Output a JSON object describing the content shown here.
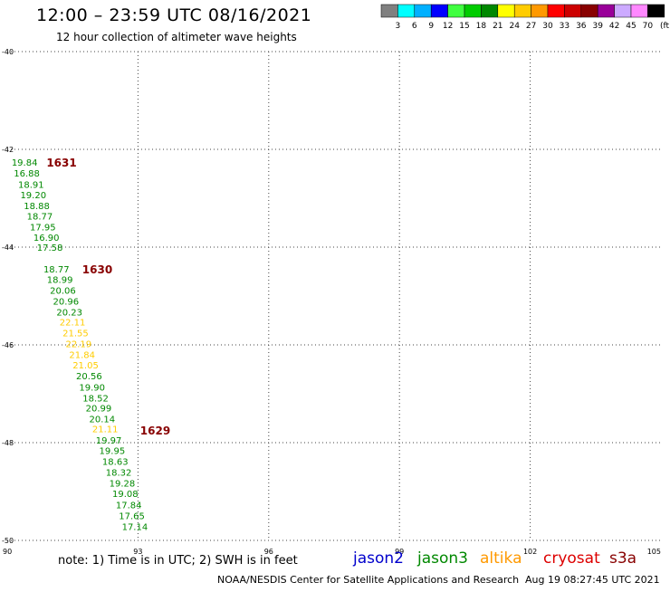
{
  "header": {
    "title": "12:00 – 23:59 UTC 08/16/2021",
    "subtitle": "12 hour collection of altimeter wave heights"
  },
  "legend": {
    "swatch_colors": [
      "#808080",
      "#00ffff",
      "#00b0ff",
      "#0000ff",
      "#40ff40",
      "#00cc00",
      "#008800",
      "#ffff00",
      "#ffcc00",
      "#ff9900",
      "#ff0000",
      "#cc0000",
      "#880000",
      "#990099",
      "#ccaaff",
      "#ff88ff",
      "#000000"
    ],
    "labels": [
      "3",
      "6",
      "9",
      "12",
      "15",
      "18",
      "21",
      "24",
      "27",
      "30",
      "33",
      "36",
      "39",
      "42",
      "45",
      "70",
      "(ft)"
    ]
  },
  "footer": {
    "note": "note: 1) Time is in UTC; 2) SWH is in feet",
    "satellites": [
      {
        "name": "jason2",
        "color": "#0000cc"
      },
      {
        "name": "jason3",
        "color": "#008800"
      },
      {
        "name": "altika",
        "color": "#ff9900"
      },
      {
        "name": "cryosat",
        "color": "#dd0000"
      },
      {
        "name": "s3a",
        "color": "#880000"
      }
    ],
    "credit": "NOAA/NESDIS Center for Satellite Applications and Research",
    "timestamp": "Aug 19 08:27:45 UTC 2021"
  },
  "chart_data": {
    "type": "scatter",
    "xlim": [
      90,
      105
    ],
    "ylim": [
      -50,
      -40
    ],
    "x_ticks": [
      90,
      93,
      96,
      99,
      102,
      105
    ],
    "y_ticks": [
      -40,
      -42,
      -44,
      -46,
      -48,
      -50
    ],
    "grid": true,
    "points": [
      {
        "x": 90.1,
        "y": -42.26,
        "v": "19.84",
        "color": "#008800"
      },
      {
        "x": 90.15,
        "y": -42.48,
        "v": "16.88",
        "color": "#008800"
      },
      {
        "x": 90.25,
        "y": -42.71,
        "v": "18.91",
        "color": "#008800"
      },
      {
        "x": 90.3,
        "y": -42.93,
        "v": "19.20",
        "color": "#008800"
      },
      {
        "x": 90.38,
        "y": -43.15,
        "v": "18.88",
        "color": "#008800"
      },
      {
        "x": 90.45,
        "y": -43.36,
        "v": "18.77",
        "color": "#008800"
      },
      {
        "x": 90.52,
        "y": -43.58,
        "v": "17.95",
        "color": "#008800"
      },
      {
        "x": 90.6,
        "y": -43.8,
        "v": "16.90",
        "color": "#008800"
      },
      {
        "x": 90.68,
        "y": -44.0,
        "v": "17.58",
        "color": "#008800"
      },
      {
        "x": 90.83,
        "y": -44.44,
        "v": "18.77",
        "color": "#008800"
      },
      {
        "x": 90.91,
        "y": -44.66,
        "v": "18.99",
        "color": "#008800"
      },
      {
        "x": 90.98,
        "y": -44.88,
        "v": "20.06",
        "color": "#008800"
      },
      {
        "x": 91.05,
        "y": -45.1,
        "v": "20.96",
        "color": "#008800"
      },
      {
        "x": 91.13,
        "y": -45.32,
        "v": "20.23",
        "color": "#008800"
      },
      {
        "x": 91.2,
        "y": -45.53,
        "v": "22.11",
        "color": "#ffcc00"
      },
      {
        "x": 91.27,
        "y": -45.75,
        "v": "21.55",
        "color": "#ffcc00"
      },
      {
        "x": 91.34,
        "y": -45.97,
        "v": "22.19",
        "color": "#ffcc00"
      },
      {
        "x": 91.42,
        "y": -46.19,
        "v": "21.84",
        "color": "#ffcc00"
      },
      {
        "x": 91.5,
        "y": -46.41,
        "v": "21.05",
        "color": "#ffcc00"
      },
      {
        "x": 91.58,
        "y": -46.63,
        "v": "20.56",
        "color": "#008800"
      },
      {
        "x": 91.65,
        "y": -46.86,
        "v": "19.90",
        "color": "#008800"
      },
      {
        "x": 91.73,
        "y": -47.08,
        "v": "18.52",
        "color": "#008800"
      },
      {
        "x": 91.8,
        "y": -47.29,
        "v": "20.99",
        "color": "#008800"
      },
      {
        "x": 91.88,
        "y": -47.51,
        "v": "20.14",
        "color": "#008800"
      },
      {
        "x": 91.95,
        "y": -47.71,
        "v": "21.11",
        "color": "#ffcc00"
      },
      {
        "x": 92.03,
        "y": -47.94,
        "v": "19.97",
        "color": "#008800"
      },
      {
        "x": 92.11,
        "y": -48.16,
        "v": "19.95",
        "color": "#008800"
      },
      {
        "x": 92.18,
        "y": -48.38,
        "v": "18.63",
        "color": "#008800"
      },
      {
        "x": 92.26,
        "y": -48.6,
        "v": "18.32",
        "color": "#008800"
      },
      {
        "x": 92.34,
        "y": -48.82,
        "v": "19.28",
        "color": "#008800"
      },
      {
        "x": 92.41,
        "y": -49.04,
        "v": "19.08",
        "color": "#008800"
      },
      {
        "x": 92.49,
        "y": -49.27,
        "v": "17.84",
        "color": "#008800"
      },
      {
        "x": 92.56,
        "y": -49.49,
        "v": "17.65",
        "color": "#008800"
      },
      {
        "x": 92.63,
        "y": -49.71,
        "v": "17.14",
        "color": "#008800"
      }
    ],
    "time_labels": [
      {
        "x": 90.9,
        "y": -42.26,
        "v": "1631",
        "color": "#880000"
      },
      {
        "x": 91.72,
        "y": -44.44,
        "v": "1630",
        "color": "#880000"
      },
      {
        "x": 93.05,
        "y": -47.74,
        "v": "1629",
        "color": "#880000"
      }
    ]
  }
}
